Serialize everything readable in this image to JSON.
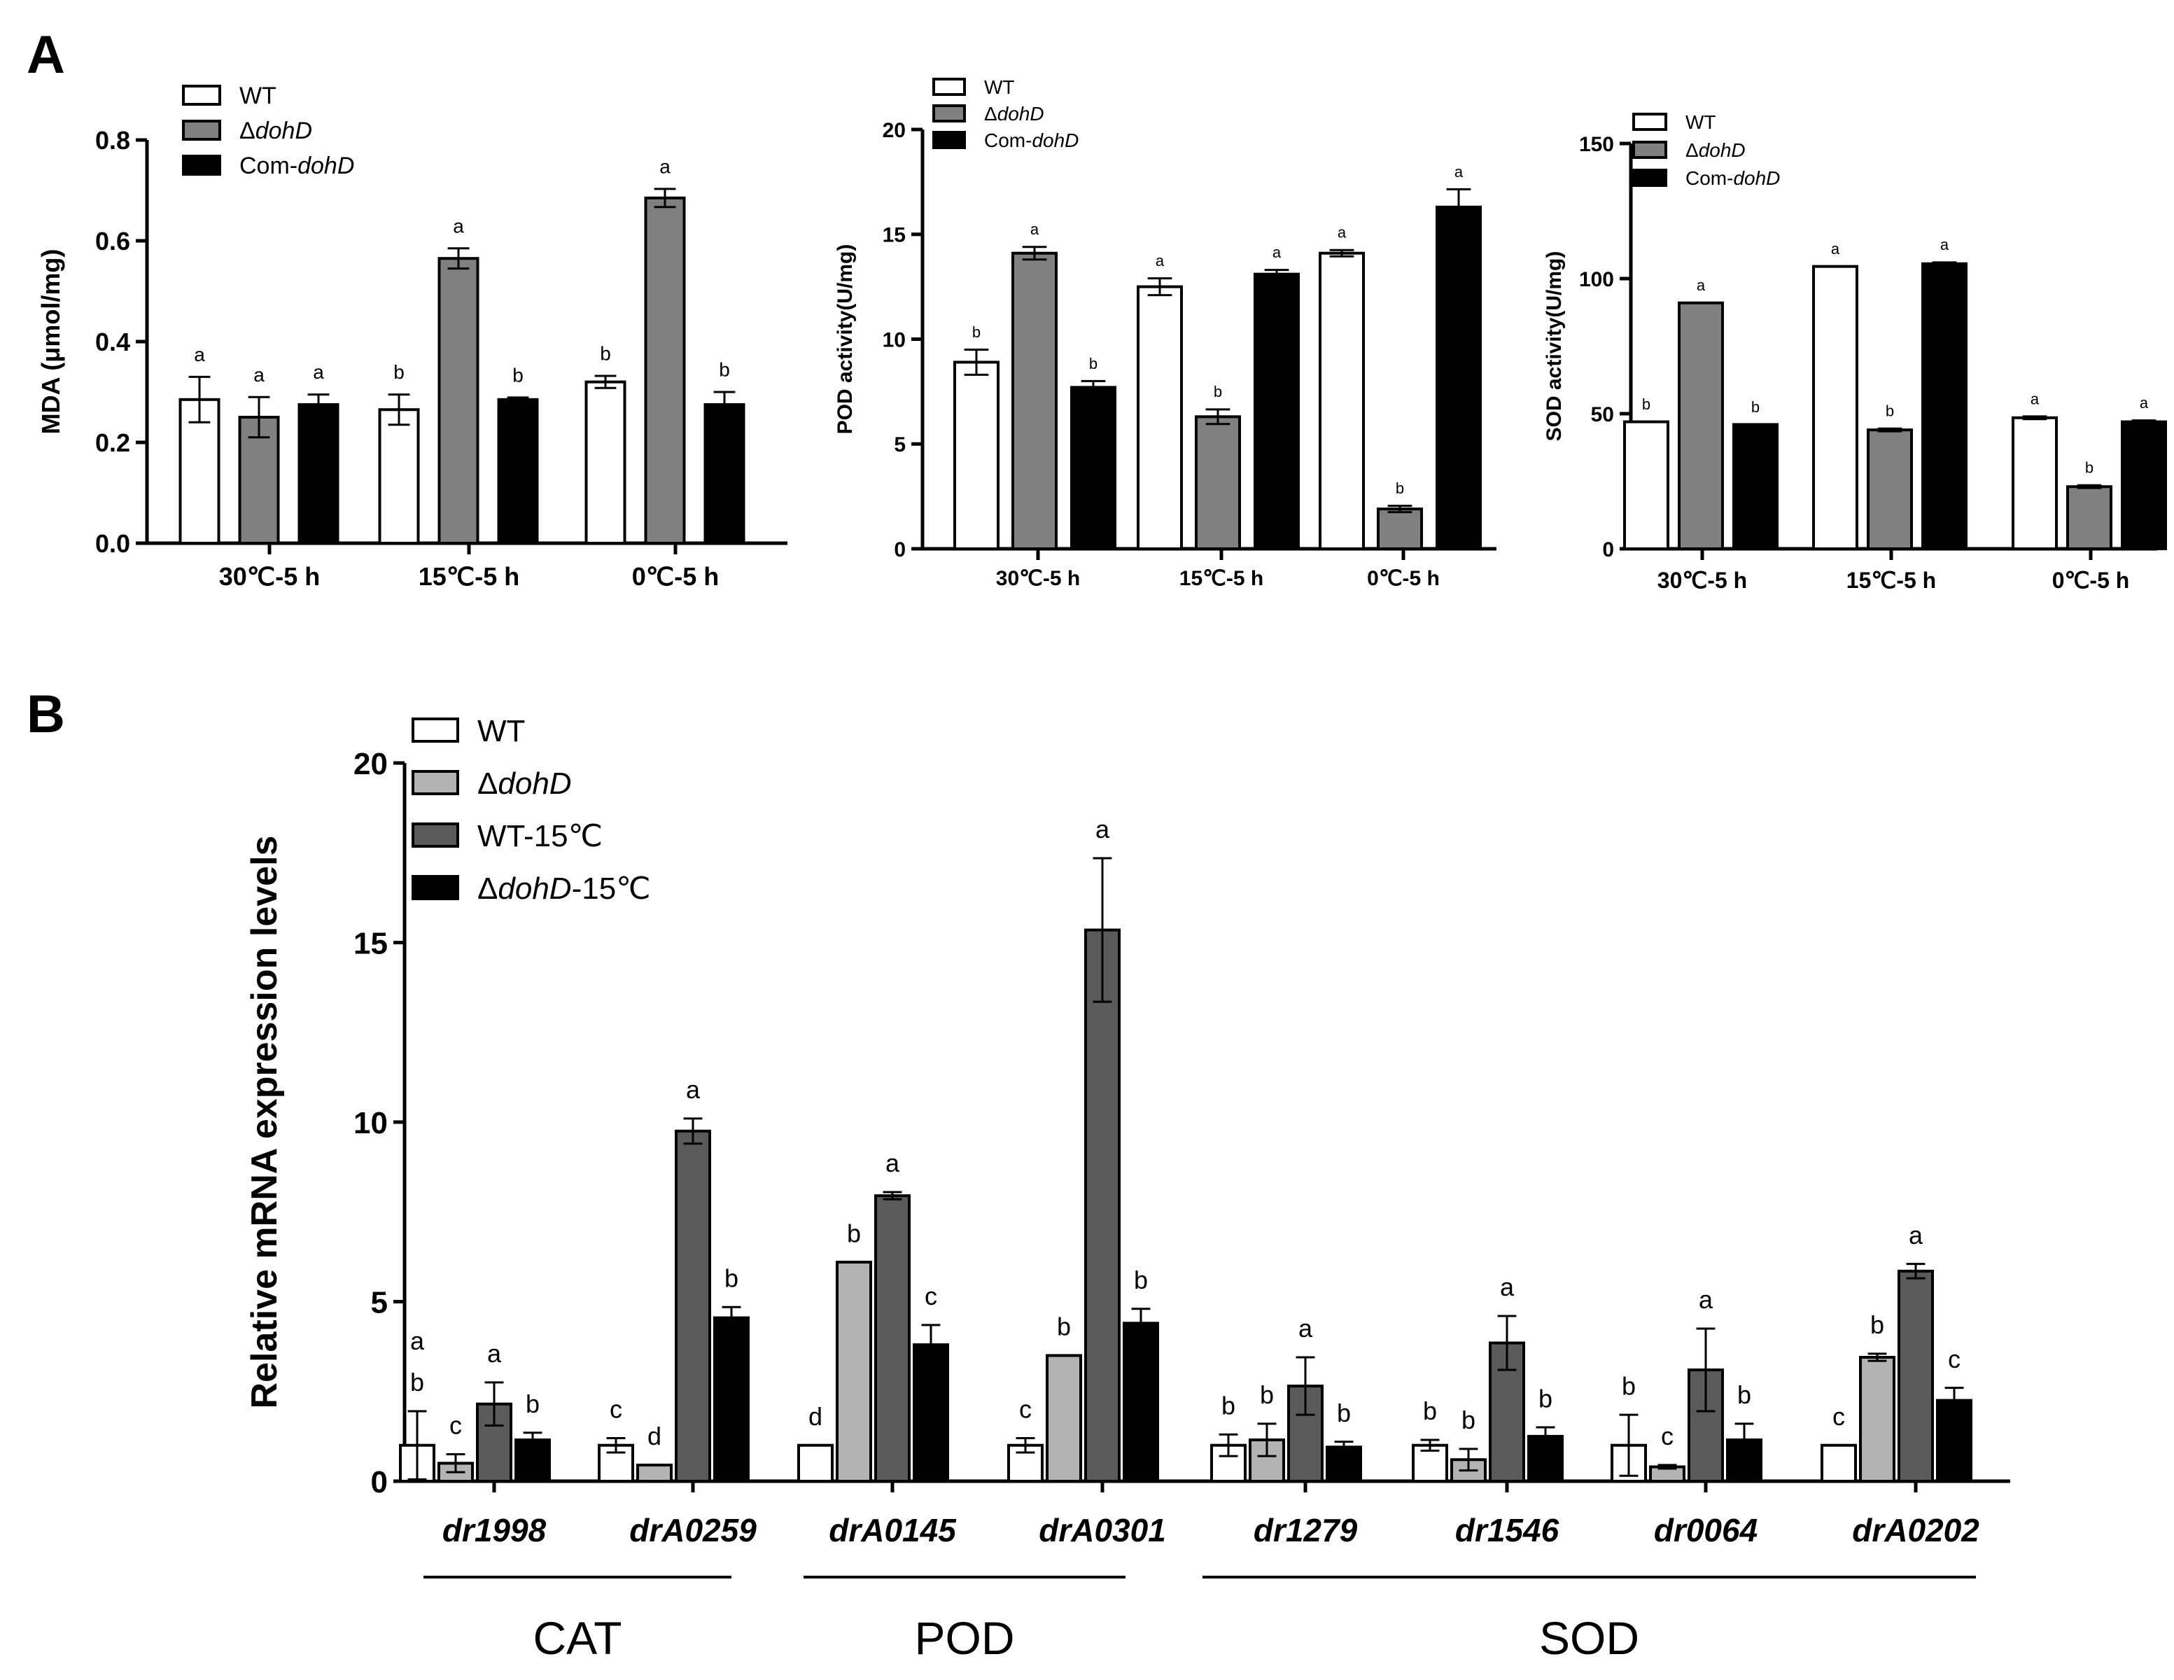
{
  "panels": {
    "a": "A",
    "b": "B"
  },
  "legend_a": [
    "WT",
    "ΔdohD",
    "Com-dohD"
  ],
  "legend_b": [
    "WT",
    "ΔdohD",
    "WT-15℃",
    "ΔdohD-15℃"
  ],
  "colors": {
    "white": "#ffffff",
    "gray": "#808080",
    "black": "#000000",
    "lightgray": "#b3b3b3",
    "darkgray": "#5a5a5a"
  },
  "chart_data": [
    {
      "type": "bar",
      "ylabel": "MDA (μmol/mg)",
      "categories": [
        "30℃-5 h",
        "15℃-5 h",
        "0℃-5 h"
      ],
      "ylim": [
        0,
        0.8
      ],
      "yticks": [
        "0.0",
        "0.2",
        "0.4",
        "0.6",
        "0.8"
      ],
      "series": [
        {
          "name": "WT",
          "values": [
            0.285,
            0.265,
            0.32
          ],
          "errors": [
            0.045,
            0.03,
            0.012
          ],
          "labels": [
            "a",
            "b",
            "b"
          ]
        },
        {
          "name": "ΔdohD",
          "values": [
            0.25,
            0.565,
            0.685
          ],
          "errors": [
            0.04,
            0.02,
            0.018
          ],
          "labels": [
            "a",
            "a",
            "a"
          ]
        },
        {
          "name": "Com-dohD",
          "values": [
            0.275,
            0.285,
            0.275
          ],
          "errors": [
            0.02,
            0.004,
            0.025
          ],
          "labels": [
            "a",
            "b",
            "b"
          ]
        }
      ]
    },
    {
      "type": "bar",
      "ylabel": "POD activity(U/mg)",
      "categories": [
        "30℃-5 h",
        "15℃-5 h",
        "0℃-5 h"
      ],
      "ylim": [
        0,
        20
      ],
      "yticks": [
        "0",
        "5",
        "10",
        "15",
        "20"
      ],
      "series": [
        {
          "name": "WT",
          "values": [
            8.9,
            12.5,
            14.1
          ],
          "errors": [
            0.6,
            0.4,
            0.15
          ],
          "labels": [
            "b",
            "a",
            "a"
          ]
        },
        {
          "name": "ΔdohD",
          "values": [
            14.1,
            6.3,
            1.9
          ],
          "errors": [
            0.3,
            0.35,
            0.15
          ],
          "labels": [
            "a",
            "b",
            "b"
          ]
        },
        {
          "name": "Com-dohD",
          "values": [
            7.7,
            13.1,
            16.3
          ],
          "errors": [
            0.3,
            0.2,
            0.85
          ],
          "labels": [
            "b",
            "a",
            "a"
          ]
        }
      ]
    },
    {
      "type": "bar",
      "ylabel": "SOD activity(U/mg)",
      "categories": [
        "30℃-5 h",
        "15℃-5 h",
        "0℃-5 h"
      ],
      "ylim": [
        0,
        150
      ],
      "yticks": [
        "0",
        "50",
        "100",
        "150"
      ],
      "series": [
        {
          "name": "WT",
          "values": [
            47,
            104.5,
            48.5
          ],
          "errors": [
            0,
            0,
            0.5
          ],
          "labels": [
            "b",
            "a",
            "a"
          ]
        },
        {
          "name": "ΔdohD",
          "values": [
            91,
            44,
            23
          ],
          "errors": [
            0,
            0.5,
            0.5
          ],
          "labels": [
            "a",
            "b",
            "b"
          ]
        },
        {
          "name": "Com-dohD",
          "values": [
            46,
            105.5,
            47
          ],
          "errors": [
            0,
            0.5,
            0.5
          ],
          "labels": [
            "b",
            "a",
            "a"
          ]
        }
      ]
    },
    {
      "type": "bar",
      "ylabel": "Relative mRNA expression levels",
      "categories": [
        "dr1998",
        "drA0259",
        "drA0145",
        "drA0301",
        "dr1279",
        "dr1546",
        "dr0064",
        "drA0202"
      ],
      "groups": [
        {
          "name": "CAT",
          "span": [
            0,
            1
          ]
        },
        {
          "name": "POD",
          "span": [
            2,
            3
          ]
        },
        {
          "name": "SOD",
          "span": [
            4,
            7
          ]
        }
      ],
      "ylim": [
        0,
        20
      ],
      "yticks": [
        "0",
        "5",
        "10",
        "15",
        "20"
      ],
      "series": [
        {
          "name": "WT",
          "values": [
            1.0,
            1.0,
            1.0,
            1.0,
            1.0,
            1.0,
            1.0,
            1.0
          ],
          "errors": [
            0.95,
            0.2,
            0.0,
            0.2,
            0.3,
            0.15,
            0.85,
            0.0
          ],
          "labels": [
            "a b",
            "c",
            "d",
            "c",
            "b",
            "b",
            "b",
            "c"
          ]
        },
        {
          "name": "ΔdohD",
          "values": [
            0.5,
            0.45,
            6.1,
            3.5,
            1.15,
            0.6,
            0.4,
            3.45
          ],
          "errors": [
            0.25,
            0.0,
            0.0,
            0.0,
            0.45,
            0.3,
            0.05,
            0.1
          ],
          "labels": [
            "c",
            "d",
            "b",
            "b",
            "b",
            "b",
            "c",
            "b"
          ]
        },
        {
          "name": "WT-15℃",
          "values": [
            2.15,
            9.75,
            7.95,
            15.35,
            2.65,
            3.85,
            3.1,
            5.85
          ],
          "errors": [
            0.6,
            0.35,
            0.1,
            2.0,
            0.8,
            0.75,
            1.15,
            0.2
          ],
          "labels": [
            "a",
            "a",
            "a",
            "a",
            "a",
            "a",
            "a",
            "a"
          ]
        },
        {
          "name": "ΔdohD-15℃",
          "values": [
            1.15,
            4.55,
            3.8,
            4.4,
            0.95,
            1.25,
            1.15,
            2.25
          ],
          "errors": [
            0.2,
            0.3,
            0.55,
            0.4,
            0.15,
            0.25,
            0.45,
            0.35
          ],
          "labels": [
            "b",
            "b",
            "c",
            "b",
            "b",
            "b",
            "b",
            "c"
          ]
        }
      ]
    }
  ]
}
